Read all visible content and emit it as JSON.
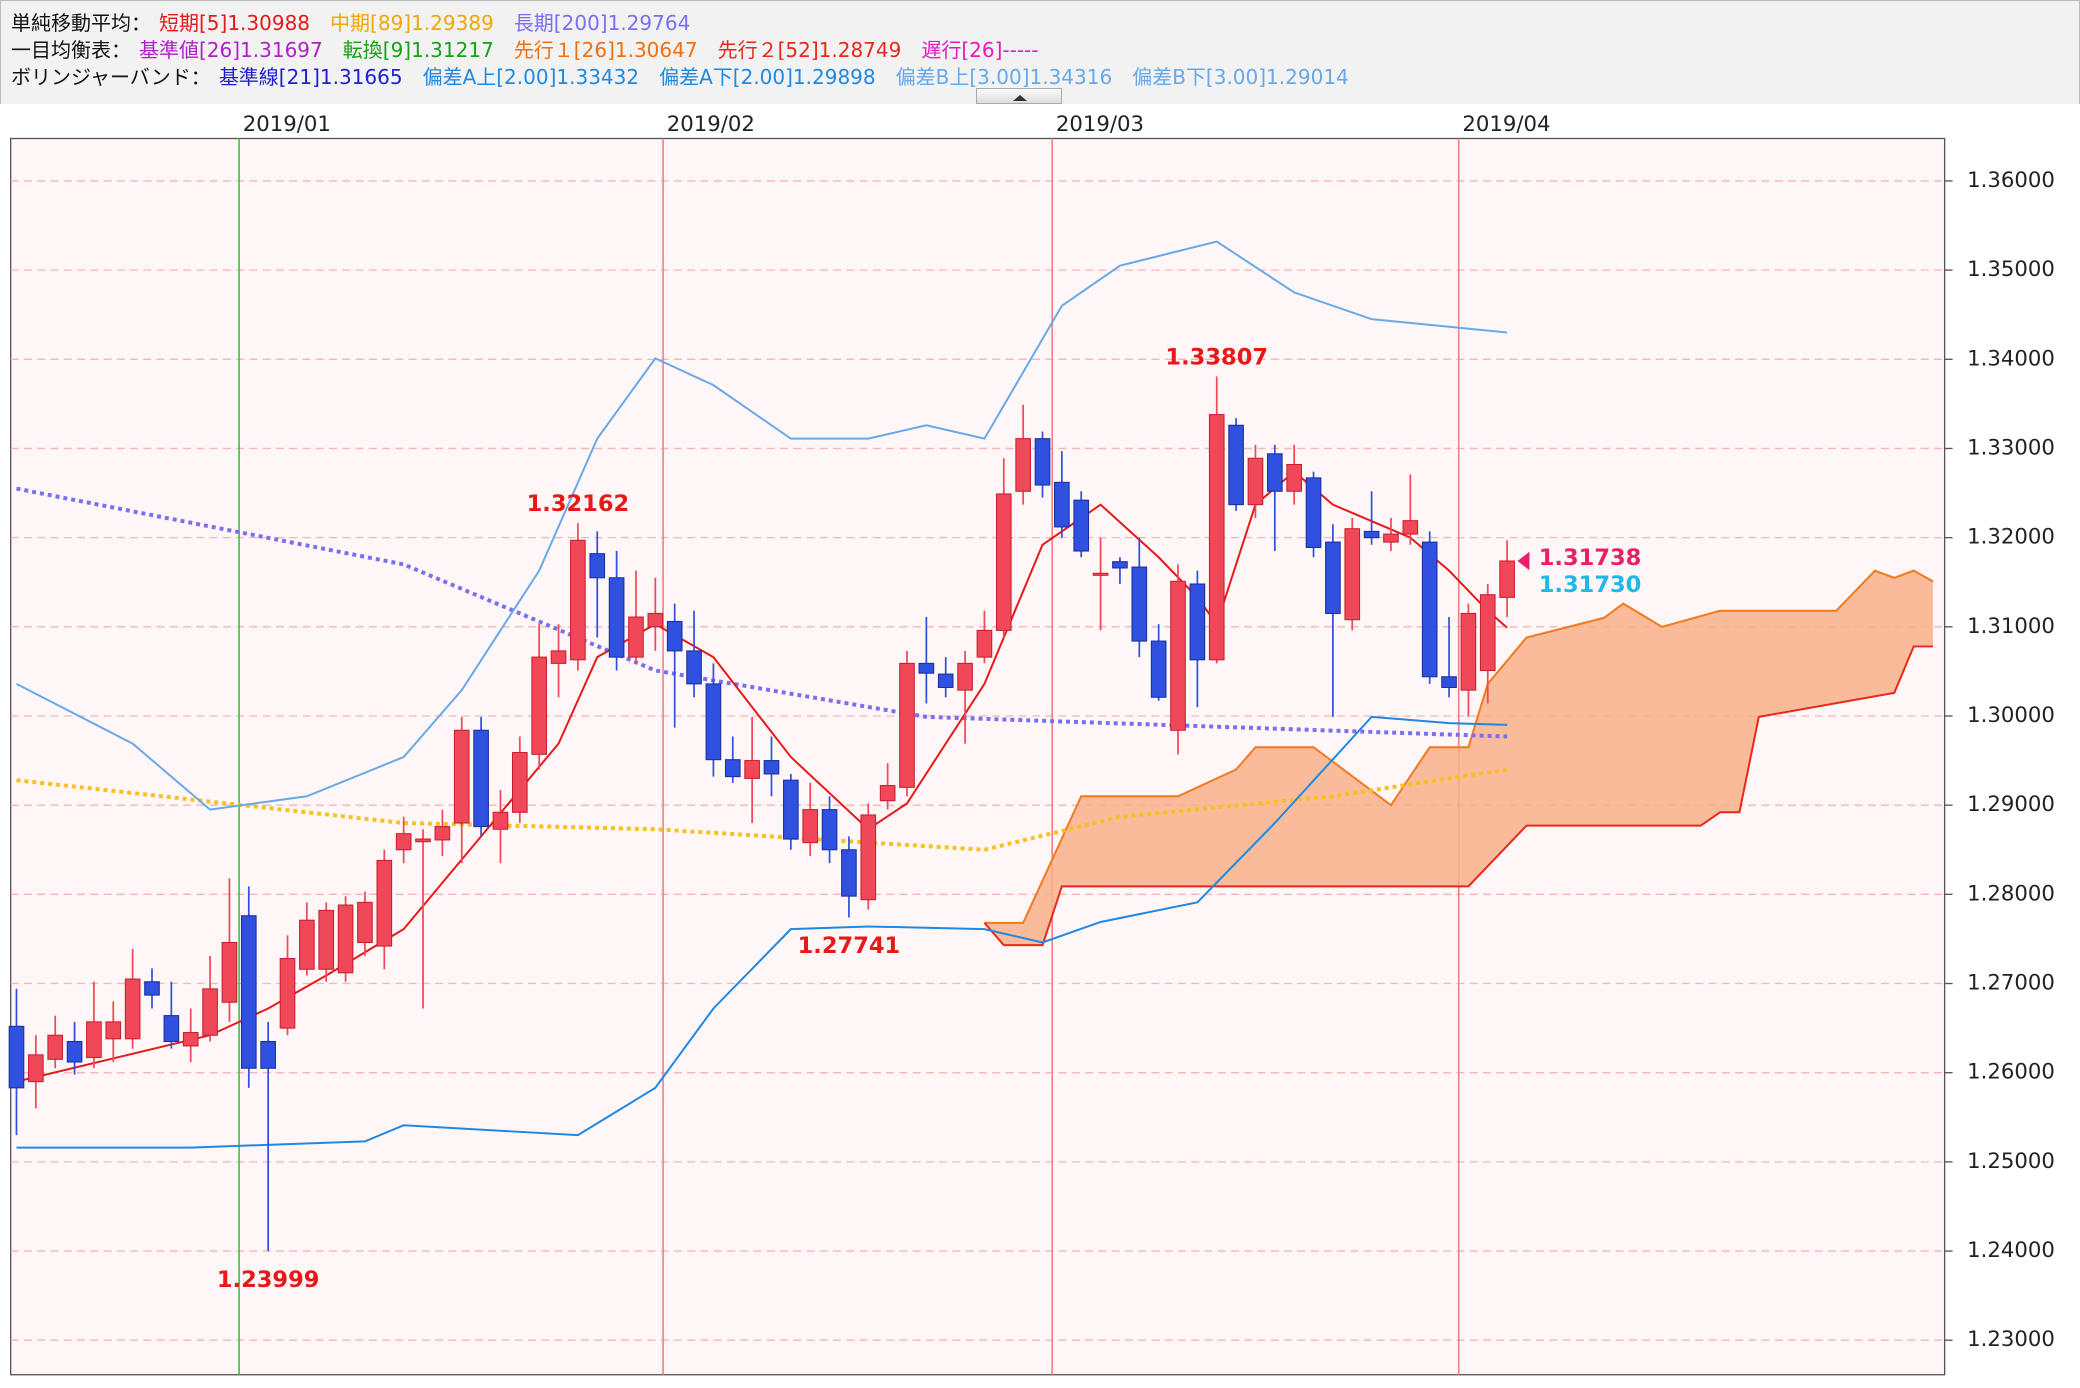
{
  "header": {
    "lines": [
      {
        "label": "単純移動平均：",
        "items": [
          {
            "text": "短期[5]1.30988",
            "color": "#e81818"
          },
          {
            "text": "中期[89]1.29389",
            "color": "#f0a800"
          },
          {
            "text": "長期[200]1.29764",
            "color": "#7a6ff0"
          }
        ]
      },
      {
        "label": "一目均衡表：",
        "items": [
          {
            "text": "基準値[26]1.31697",
            "color": "#b020c8"
          },
          {
            "text": "転換[9]1.31217",
            "color": "#18a018"
          },
          {
            "text": "先行１[26]1.30647",
            "color": "#f07010"
          },
          {
            "text": "先行２[52]1.28749",
            "color": "#e82818"
          },
          {
            "text": "遅行[26]-----",
            "color": "#e818c0"
          }
        ]
      },
      {
        "label": "ボリンジャーバンド：",
        "items": [
          {
            "text": "基準線[21]1.31665",
            "color": "#2020d0"
          },
          {
            "text": "偏差A上[2.00]1.33432",
            "color": "#2088e0"
          },
          {
            "text": "偏差A下[2.00]1.29898",
            "color": "#2088e0"
          },
          {
            "text": "偏差B上[3.00]1.34316",
            "color": "#68a8e8"
          },
          {
            "text": "偏差B下[3.00]1.29014",
            "color": "#68a8e8"
          }
        ]
      }
    ]
  },
  "chart_data": {
    "type": "candlestick",
    "xlim": [
      -0.3,
      99.6
    ],
    "xticks": [
      {
        "value": 11.5,
        "label": "2019/01"
      },
      {
        "value": 33.4,
        "label": "2019/02"
      },
      {
        "value": 53.5,
        "label": "2019/03"
      },
      {
        "value": 74.5,
        "label": "2019/04"
      }
    ],
    "ylim": [
      1.22613,
      1.36476
    ],
    "yticks": [
      {
        "value": 1.23,
        "label": "1.23000"
      },
      {
        "value": 1.24,
        "label": "1.24000"
      },
      {
        "value": 1.25,
        "label": "1.25000"
      },
      {
        "value": 1.26,
        "label": "1.26000"
      },
      {
        "value": 1.27,
        "label": "1.27000"
      },
      {
        "value": 1.28,
        "label": "1.28000"
      },
      {
        "value": 1.29,
        "label": "1.29000"
      },
      {
        "value": 1.3,
        "label": "1.30000"
      },
      {
        "value": 1.31,
        "label": "1.31000"
      },
      {
        "value": 1.32,
        "label": "1.32000"
      },
      {
        "value": 1.33,
        "label": "1.33000"
      },
      {
        "value": 1.34,
        "label": "1.34000"
      },
      {
        "value": 1.35,
        "label": "1.35000"
      },
      {
        "value": 1.36,
        "label": "1.36000"
      }
    ],
    "grid": true,
    "up_color": "#f04858",
    "down_color": "#3050e0",
    "candles": {
      "open": [
        1.2652,
        1.259,
        1.2615,
        1.2635,
        1.2617,
        1.2638,
        1.2638,
        1.2702,
        1.2664,
        1.263,
        1.2642,
        1.2679,
        1.2776,
        1.2635,
        1.265,
        1.2716,
        1.2716,
        1.2712,
        1.2746,
        1.2742,
        1.285,
        1.2859,
        1.2861,
        1.288,
        1.2984,
        1.2873,
        1.2892,
        1.2957,
        1.3059,
        1.3063,
        1.3182,
        1.3155,
        1.3066,
        1.31,
        1.3106,
        1.3073,
        1.3036,
        1.2951,
        1.293,
        1.295,
        1.2928,
        1.2858,
        1.2895,
        1.285,
        1.2794,
        1.2905,
        1.292,
        1.3059,
        1.3047,
        1.3029,
        1.3066,
        1.3096,
        1.3252,
        1.3311,
        1.3262,
        1.3242,
        1.316,
        1.3173,
        1.3167,
        1.3084,
        1.2984,
        1.3148,
        1.3063,
        1.3326,
        1.3237,
        1.3294,
        1.3252,
        1.3267,
        1.3195,
        1.3108,
        1.3207,
        1.3195,
        1.3204,
        1.3195,
        1.3044,
        1.3029,
        1.3051,
        1.3133
      ],
      "high": [
        1.2694,
        1.2642,
        1.2664,
        1.2657,
        1.2702,
        1.268,
        1.2739,
        1.2717,
        1.2702,
        1.2672,
        1.2731,
        1.2818,
        1.2809,
        1.2657,
        1.2754,
        1.2791,
        1.2791,
        1.2798,
        1.2803,
        1.285,
        1.2887,
        1.2873,
        1.2895,
        1.2999,
        1.2999,
        1.2917,
        1.2977,
        1.3103,
        1.3103,
        1.32162,
        1.3207,
        1.3185,
        1.3163,
        1.3155,
        1.3126,
        1.3118,
        1.3059,
        1.2977,
        1.2999,
        1.2977,
        1.2935,
        1.2925,
        1.291,
        1.2865,
        1.2902,
        1.2947,
        1.3073,
        1.3111,
        1.3066,
        1.3073,
        1.3118,
        1.3289,
        1.3349,
        1.3319,
        1.3297,
        1.3252,
        1.32,
        1.3178,
        1.32,
        1.3103,
        1.317,
        1.3163,
        1.33807,
        1.3334,
        1.3304,
        1.3304,
        1.3304,
        1.3274,
        1.3215,
        1.3222,
        1.3252,
        1.3222,
        1.3271,
        1.3207,
        1.3111,
        1.3126,
        1.3148,
        1.3197
      ],
      "low": [
        1.253,
        1.256,
        1.2605,
        1.2598,
        1.2605,
        1.2612,
        1.2627,
        1.2672,
        1.2627,
        1.2612,
        1.2635,
        1.2657,
        1.2583,
        1.23999,
        1.2642,
        1.2709,
        1.2702,
        1.2702,
        1.2731,
        1.2716,
        1.2835,
        1.2672,
        1.2843,
        1.2835,
        1.2865,
        1.2835,
        1.288,
        1.294,
        1.3021,
        1.3051,
        1.3088,
        1.3051,
        1.3059,
        1.3073,
        1.2987,
        1.3021,
        1.2932,
        1.2925,
        1.288,
        1.291,
        1.285,
        1.2843,
        1.2835,
        1.27741,
        1.2783,
        1.2895,
        1.291,
        1.3014,
        1.3021,
        1.2969,
        1.3059,
        1.3088,
        1.3237,
        1.3245,
        1.32,
        1.3178,
        1.3096,
        1.3148,
        1.3066,
        1.3017,
        1.2957,
        1.301,
        1.3059,
        1.323,
        1.3222,
        1.3185,
        1.3237,
        1.3178,
        1.2999,
        1.3096,
        1.3192,
        1.3185,
        1.3192,
        1.3036,
        1.3021,
        1.2999,
        1.3014,
        1.3111
      ],
      "close": [
        1.2583,
        1.262,
        1.2642,
        1.2612,
        1.2657,
        1.2657,
        1.2705,
        1.2687,
        1.2635,
        1.2645,
        1.2694,
        1.2746,
        1.2605,
        1.2605,
        1.2728,
        1.2771,
        1.2782,
        1.2788,
        1.2791,
        1.2838,
        1.2868,
        1.2862,
        1.2876,
        1.2984,
        1.2876,
        1.2892,
        1.2959,
        1.3066,
        1.3073,
        1.3197,
        1.3155,
        1.3066,
        1.3111,
        1.3115,
        1.3073,
        1.3036,
        1.2951,
        1.2932,
        1.295,
        1.2935,
        1.2862,
        1.2895,
        1.285,
        1.2798,
        1.2889,
        1.2922,
        1.3059,
        1.3048,
        1.3032,
        1.3059,
        1.3096,
        1.3249,
        1.3311,
        1.3259,
        1.3212,
        1.3185,
        1.316,
        1.3166,
        1.3084,
        1.3021,
        1.3151,
        1.3063,
        1.3338,
        1.3237,
        1.3289,
        1.3252,
        1.3282,
        1.3189,
        1.3115,
        1.321,
        1.32,
        1.3204,
        1.3219,
        1.3044,
        1.3032,
        1.3115,
        1.3136,
        1.31738
      ]
    },
    "cloud": {
      "color": "#f8b08a",
      "span_a": {
        "color": "#f07a20",
        "x": [
          50,
          52,
          55,
          60,
          63,
          64,
          67,
          71,
          73,
          75,
          76,
          78,
          82,
          83,
          85,
          88,
          94,
          96,
          97,
          98,
          99
        ],
        "values": [
          1.2768,
          1.2768,
          1.291,
          1.291,
          1.294,
          1.2965,
          1.2965,
          1.29,
          1.2965,
          1.2965,
          1.3036,
          1.3088,
          1.311,
          1.3126,
          1.31,
          1.3118,
          1.3118,
          1.3163,
          1.3155,
          1.3163,
          1.3151
        ]
      },
      "span_b": {
        "color": "#e82818",
        "x": [
          50,
          51,
          53,
          54,
          75,
          78,
          87,
          88,
          89,
          90,
          97,
          98,
          99
        ],
        "values": [
          1.2768,
          1.2743,
          1.2743,
          1.2809,
          1.2809,
          1.2877,
          1.2877,
          1.2892,
          1.2892,
          1.2999,
          1.3026,
          1.3078,
          1.3078
        ]
      }
    },
    "series": [
      {
        "color": "#7a6ff0",
        "dash": "dotted",
        "x": [
          0,
          20,
          33,
          47,
          77
        ],
        "values": [
          1.3255,
          1.317,
          1.3051,
          1.2999,
          1.2977
        ]
      },
      {
        "color": "#f8c020",
        "dash": "dotted",
        "x": [
          0,
          20,
          33,
          50,
          57,
          68,
          77
        ],
        "values": [
          1.2928,
          1.288,
          1.2873,
          1.285,
          1.2887,
          1.291,
          1.294
        ]
      },
      {
        "color": "#68a8e8",
        "dash": "solid",
        "x": [
          0,
          6,
          10,
          15,
          20,
          23,
          27,
          30,
          33,
          36,
          40,
          44,
          47,
          50,
          54,
          57,
          62,
          66,
          70,
          77
        ],
        "values": [
          1.3036,
          1.2969,
          1.2895,
          1.291,
          1.2954,
          1.3029,
          1.3163,
          1.3311,
          1.3401,
          1.3371,
          1.3311,
          1.3311,
          1.3326,
          1.3311,
          1.346,
          1.3505,
          1.3532,
          1.3475,
          1.3445,
          1.343
        ]
      },
      {
        "color": "#2088e0",
        "dash": "solid",
        "x": [
          0,
          9,
          18,
          20,
          29,
          33,
          36,
          40,
          44,
          50,
          53,
          56,
          61,
          65,
          70,
          74,
          77
        ],
        "values": [
          1.2516,
          1.2516,
          1.2523,
          1.2541,
          1.253,
          1.2583,
          1.2672,
          1.2761,
          1.2764,
          1.2761,
          1.2746,
          1.2769,
          1.2791,
          1.288,
          1.2999,
          1.2992,
          1.299
        ]
      },
      {
        "color": "#e81818",
        "dash": "solid",
        "x": [
          0,
          10,
          13,
          16,
          20,
          24,
          28,
          30,
          33,
          36,
          40,
          44,
          46,
          50,
          53,
          56,
          59,
          61,
          62,
          64,
          66,
          68,
          72,
          74,
          76,
          77
        ],
        "values": [
          1.259,
          1.2642,
          1.2672,
          1.2709,
          1.2761,
          1.2865,
          1.2969,
          1.3066,
          1.3103,
          1.3066,
          1.2954,
          1.2873,
          1.2902,
          1.3036,
          1.3192,
          1.3237,
          1.3178,
          1.3133,
          1.3103,
          1.3237,
          1.3274,
          1.3237,
          1.32,
          1.3163,
          1.3118,
          1.3099
        ]
      }
    ],
    "annotations": [
      {
        "value": 1.32162,
        "label": "1.32162",
        "x": 29,
        "position": "above"
      },
      {
        "value": 1.33807,
        "label": "1.33807",
        "x": 62,
        "position": "above"
      },
      {
        "value": 1.27741,
        "label": "1.27741",
        "x": 43,
        "position": "below"
      },
      {
        "value": 1.23999,
        "label": "1.23999",
        "x": 13,
        "position": "below"
      }
    ],
    "price_tags": [
      {
        "value": 1.31738,
        "label": "1.31738",
        "color": "#e8206a"
      },
      {
        "value": 1.3173,
        "label": "1.31730",
        "color": "#20b8e8"
      }
    ]
  }
}
